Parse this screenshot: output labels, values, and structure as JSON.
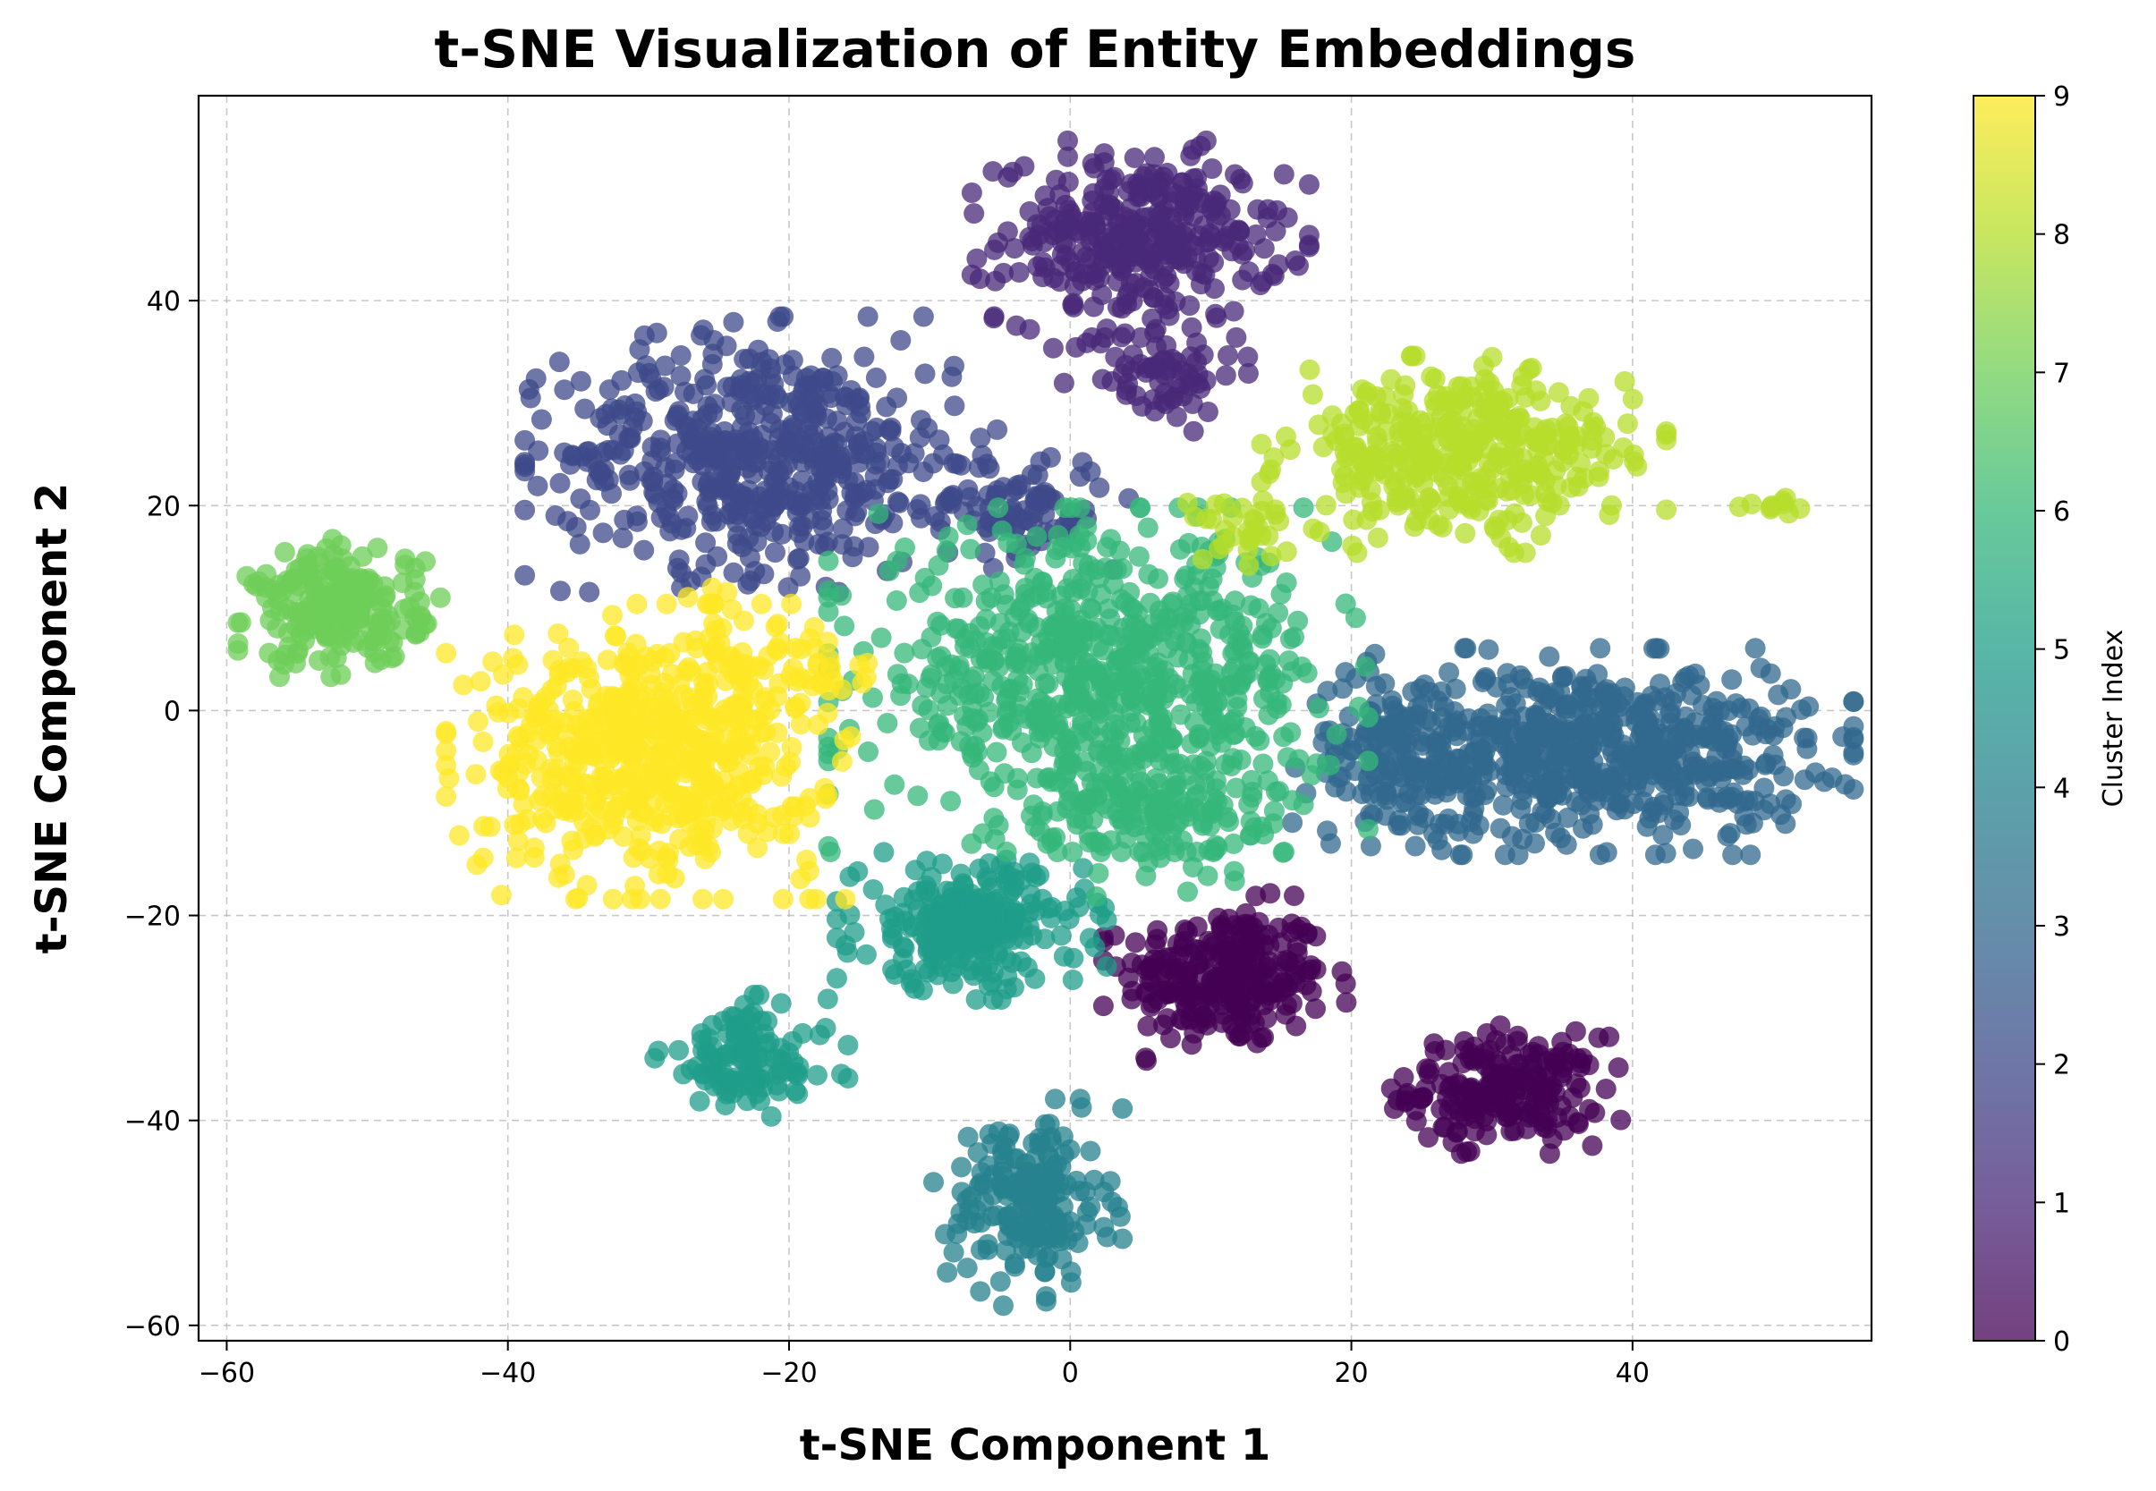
{
  "chart_data": {
    "type": "scatter",
    "title": "t-SNE Visualization of Entity Embeddings",
    "xlabel": "t-SNE Component 1",
    "ylabel": "t-SNE Component 2",
    "xlim": [
      -62,
      57
    ],
    "ylim": [
      -61.5,
      60
    ],
    "xticks": [
      -60,
      -40,
      -20,
      0,
      20,
      40
    ],
    "yticks": [
      -60,
      -40,
      -20,
      0,
      20,
      40
    ],
    "xtick_labels": [
      "−60",
      "−40",
      "−20",
      "0",
      "20",
      "40"
    ],
    "ytick_labels": [
      "−60",
      "−40",
      "−20",
      "0",
      "20",
      "40"
    ],
    "grid": true,
    "marker_alpha": 0.75,
    "colormap": "viridis",
    "colorbar": {
      "label": "Cluster Index",
      "range": [
        0,
        9
      ],
      "ticks": [
        0,
        1,
        2,
        3,
        4,
        5,
        6,
        7,
        8,
        9
      ],
      "tick_labels": [
        "0",
        "1",
        "2",
        "3",
        "4",
        "5",
        "6",
        "7",
        "8",
        "9"
      ]
    },
    "cluster_colors": [
      "#440154",
      "#482878",
      "#3e4989",
      "#31688e",
      "#26828e",
      "#1f9e89",
      "#35b779",
      "#6ece58",
      "#b5de2b",
      "#fde725"
    ],
    "clusters": [
      {
        "index": 0,
        "center": [
          11,
          -26
        ],
        "spread": [
          3.6,
          3.4
        ],
        "n": 260
      },
      {
        "index": 0,
        "center": [
          31,
          -37
        ],
        "spread": [
          3.4,
          2.6
        ],
        "n": 210
      },
      {
        "index": 1,
        "center": [
          5,
          46
        ],
        "spread": [
          5.0,
          4.0
        ],
        "n": 330
      },
      {
        "index": 1,
        "center": [
          6,
          33
        ],
        "spread": [
          3.0,
          2.4
        ],
        "n": 70
      },
      {
        "index": 2,
        "center": [
          -22,
          25
        ],
        "spread": [
          7.0,
          5.6
        ],
        "n": 520
      },
      {
        "index": 2,
        "center": [
          -4,
          20
        ],
        "spread": [
          3.4,
          2.6
        ],
        "n": 90
      },
      {
        "index": 3,
        "center": [
          37,
          -4
        ],
        "spread": [
          7.8,
          4.2
        ],
        "n": 620
      },
      {
        "index": 3,
        "center": [
          23,
          -4
        ],
        "spread": [
          3.0,
          4.0
        ],
        "n": 110
      },
      {
        "index": 4,
        "center": [
          -3,
          -48
        ],
        "spread": [
          2.8,
          4.2
        ],
        "n": 180
      },
      {
        "index": 5,
        "center": [
          -7,
          -21
        ],
        "spread": [
          4.0,
          3.0
        ],
        "n": 260
      },
      {
        "index": 5,
        "center": [
          -23,
          -34
        ],
        "spread": [
          3.0,
          2.6
        ],
        "n": 120
      },
      {
        "index": 6,
        "center": [
          2,
          3
        ],
        "spread": [
          8.0,
          7.0
        ],
        "n": 720
      },
      {
        "index": 6,
        "center": [
          7,
          -10
        ],
        "spread": [
          4.0,
          3.4
        ],
        "n": 130
      },
      {
        "index": 7,
        "center": [
          -52,
          10
        ],
        "spread": [
          3.0,
          2.8
        ],
        "n": 210
      },
      {
        "index": 8,
        "center": [
          28,
          25
        ],
        "spread": [
          6.0,
          4.0
        ],
        "n": 360
      },
      {
        "index": 8,
        "center": [
          12,
          18
        ],
        "spread": [
          1.8,
          1.6
        ],
        "n": 30
      },
      {
        "index": 8,
        "center": [
          50,
          20
        ],
        "spread": [
          1.0,
          0.4
        ],
        "n": 10
      },
      {
        "index": 9,
        "center": [
          -30,
          -4
        ],
        "spread": [
          6.0,
          6.0
        ],
        "n": 560
      },
      {
        "index": 9,
        "center": [
          -20,
          5
        ],
        "spread": [
          3.0,
          3.0
        ],
        "n": 50
      }
    ]
  }
}
